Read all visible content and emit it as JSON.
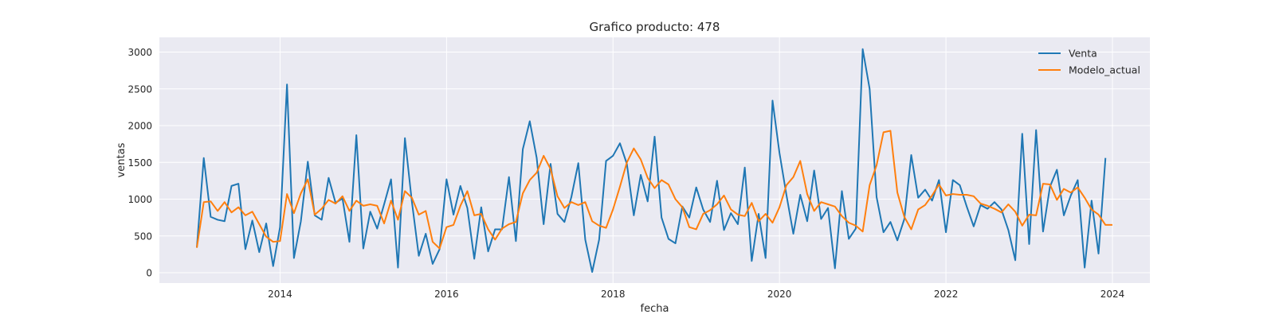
{
  "chart_data": {
    "type": "line",
    "title": "Grafico producto: 478",
    "xlabel": "fecha",
    "ylabel": "ventas",
    "xlim": [
      2012.55,
      2024.45
    ],
    "ylim": [
      -140,
      3200
    ],
    "x_ticks": [
      2014,
      2016,
      2018,
      2020,
      2022,
      2024
    ],
    "x_tick_labels": [
      "2014",
      "2016",
      "2018",
      "2020",
      "2022",
      "2024"
    ],
    "y_ticks": [
      0,
      500,
      1000,
      1500,
      2000,
      2500,
      3000
    ],
    "y_tick_labels": [
      "0",
      "500",
      "1000",
      "1500",
      "2000",
      "2500",
      "3000"
    ],
    "grid": true,
    "legend_position": "upper-right",
    "x_start": 2013.0,
    "x_step": 0.08333,
    "series": [
      {
        "name": "Venta",
        "color": "#1f77b4",
        "values": [
          340,
          1560,
          760,
          720,
          700,
          1180,
          1210,
          320,
          710,
          280,
          670,
          90,
          620,
          2560,
          200,
          700,
          1510,
          780,
          720,
          1290,
          950,
          1010,
          420,
          1870,
          330,
          830,
          600,
          930,
          1270,
          70,
          1830,
          970,
          230,
          530,
          120,
          320,
          1270,
          790,
          1180,
          880,
          190,
          890,
          290,
          590,
          590,
          1300,
          430,
          1680,
          2060,
          1560,
          660,
          1480,
          800,
          690,
          1030,
          1490,
          450,
          10,
          450,
          1520,
          1590,
          1760,
          1480,
          780,
          1330,
          970,
          1850,
          750,
          460,
          400,
          900,
          750,
          1160,
          860,
          690,
          1250,
          580,
          810,
          660,
          1430,
          160,
          800,
          200,
          2340,
          1630,
          1060,
          530,
          1060,
          700,
          1390,
          730,
          880,
          60,
          1110,
          460,
          600,
          3040,
          2500,
          1030,
          550,
          690,
          440,
          730,
          1600,
          1020,
          1130,
          980,
          1260,
          550,
          1260,
          1190,
          900,
          630,
          920,
          870,
          960,
          860,
          580,
          170,
          1890,
          390,
          1940,
          560,
          1170,
          1400,
          780,
          1050,
          1260,
          70,
          980,
          260,
          1560
        ]
      },
      {
        "name": "Modelo_actual",
        "color": "#ff7f0e",
        "values": [
          340,
          960,
          970,
          840,
          960,
          820,
          890,
          780,
          830,
          660,
          490,
          420,
          430,
          1070,
          810,
          1080,
          1270,
          790,
          870,
          990,
          940,
          1040,
          840,
          980,
          910,
          930,
          910,
          670,
          980,
          720,
          1110,
          1020,
          790,
          840,
          420,
          330,
          620,
          650,
          910,
          1110,
          780,
          800,
          590,
          450,
          600,
          660,
          690,
          1080,
          1260,
          1360,
          1590,
          1410,
          1040,
          880,
          960,
          920,
          960,
          700,
          640,
          610,
          860,
          1170,
          1500,
          1690,
          1540,
          1290,
          1150,
          1260,
          1200,
          1000,
          890,
          620,
          590,
          800,
          850,
          930,
          1050,
          860,
          790,
          770,
          950,
          700,
          800,
          680,
          890,
          1190,
          1300,
          1520,
          1070,
          840,
          960,
          930,
          900,
          770,
          680,
          640,
          560,
          1190,
          1460,
          1910,
          1930,
          1090,
          760,
          590,
          860,
          920,
          1050,
          1200,
          1050,
          1070,
          1060,
          1060,
          1040,
          940,
          910,
          870,
          820,
          930,
          830,
          640,
          790,
          780,
          1210,
          1200,
          990,
          1140,
          1090,
          1160,
          1020,
          860,
          790,
          650,
          650
        ]
      }
    ]
  }
}
